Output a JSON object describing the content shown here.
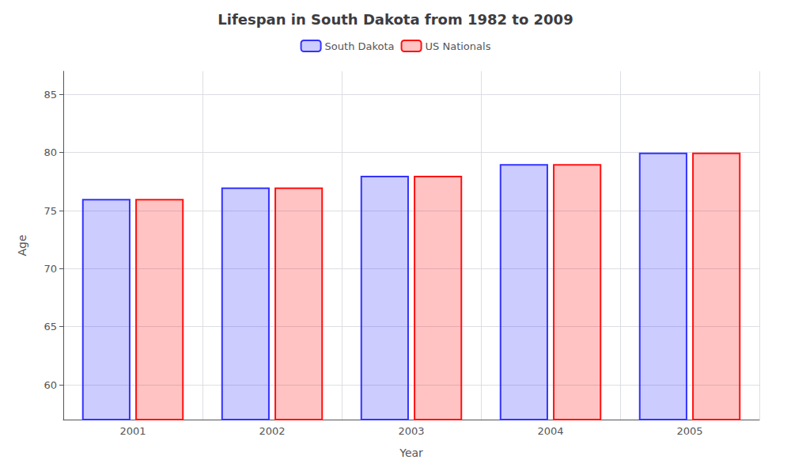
{
  "chart_data": {
    "type": "bar",
    "title": "Lifespan in South Dakota from 1982 to 2009",
    "xlabel": "Year",
    "ylabel": "Age",
    "categories": [
      "2001",
      "2002",
      "2003",
      "2004",
      "2005"
    ],
    "series": [
      {
        "name": "South Dakota",
        "color": "#3333ff",
        "values": [
          76,
          77,
          78,
          79,
          80
        ]
      },
      {
        "name": "US Nationals",
        "color": "#ff1111",
        "values": [
          76,
          77,
          78,
          79,
          80
        ]
      }
    ],
    "ylim": [
      57,
      87
    ],
    "yticks": [
      60,
      65,
      70,
      75,
      80,
      85
    ],
    "grid": true,
    "legend": "top"
  }
}
